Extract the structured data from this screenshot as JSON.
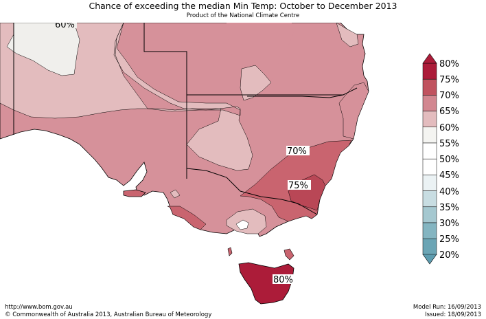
{
  "header": {
    "title": "Chance of exceeding the median Min Temp: October to December 2013",
    "subtitle": "Product of the National Climate Centre"
  },
  "map": {
    "contour_labels": [
      {
        "text": "60%",
        "region": "north-west"
      },
      {
        "text": "70%",
        "region": "central NSW"
      },
      {
        "text": "75%",
        "region": "south-east NSW"
      },
      {
        "text": "80%",
        "region": "Tasmania"
      }
    ],
    "colors": {
      "p55_60": "#f0efec",
      "p60_65": "#e3bcbe",
      "p65_70": "#d6919a",
      "p70_75": "#c9646f",
      "p75_80": "#b94756",
      "p80_plus": "#ac1c39",
      "border": "#000000"
    }
  },
  "legend": {
    "labels": [
      "80%",
      "75%",
      "70%",
      "65%",
      "60%",
      "55%",
      "50%",
      "45%",
      "40%",
      "35%",
      "30%",
      "25%",
      "20%"
    ],
    "colors": [
      "#ac1c39",
      "#c0535f",
      "#d28790",
      "#e3bcbe",
      "#f4f4f1",
      "#ffffff",
      "#ffffff",
      "#ebf2f4",
      "#c8dde2",
      "#a5c8d0",
      "#84b5c1",
      "#6ba5b5"
    ],
    "top_arrow_color": "#ac1c39",
    "bottom_arrow_color": "#5d9caf"
  },
  "footer": {
    "url": "http://www.bom.gov.au",
    "copyright": "©  Commonwealth of Australia 2013, Australian Bureau of Meteorology",
    "model_run": "Model Run: 16/09/2013",
    "issued": "Issued: 18/09/2013"
  }
}
